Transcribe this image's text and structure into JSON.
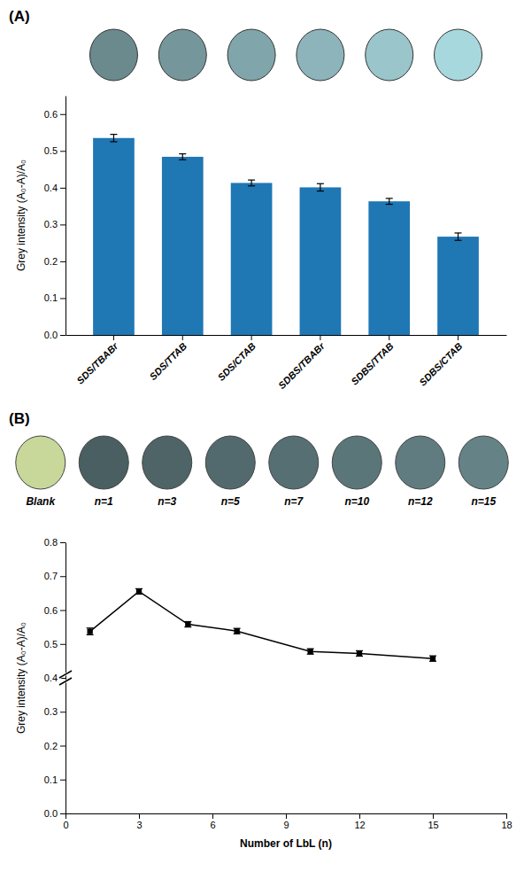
{
  "chart_data": [
    {
      "type": "bar",
      "title": "(A)",
      "categories": [
        "SDS/TBABr",
        "SDS/TTAB",
        "SDS/CTAB",
        "SDBS/TBABr",
        "SDBS/TTAB",
        "SDBS/CTAB"
      ],
      "values": [
        0.535,
        0.484,
        0.413,
        0.401,
        0.363,
        0.267
      ],
      "errors": [
        0.01,
        0.008,
        0.008,
        0.01,
        0.008,
        0.01
      ],
      "ylabel": "Grey intensity (A₀-A)/A₀",
      "ylim": [
        0.0,
        0.65
      ],
      "yticks": [
        {
          "value": 0.0,
          "label": "0.0"
        },
        0.1,
        0.2,
        0.3,
        0.4,
        0.5,
        0.6
      ]
    },
    {
      "type": "line",
      "title": "(B)",
      "annotations": [
        "Blank",
        "n=1",
        "n=3",
        "n=5",
        "n=7",
        "n=10",
        "n=12",
        "n=15"
      ],
      "x": [
        1,
        3,
        5,
        7,
        10,
        12,
        15
      ],
      "values": [
        0.537,
        0.655,
        0.558,
        0.538,
        0.478,
        0.472,
        0.457
      ],
      "errors": [
        0.01,
        0.008,
        0.008,
        0.008,
        0.008,
        0.008,
        0.008
      ],
      "xlabel": "Number of LbL (n)",
      "ylabel": "Grey intensity (A₀-A)/A₀",
      "xlim": [
        0,
        18
      ],
      "ylim": [
        0.0,
        0.8
      ],
      "xticks": [
        0,
        3,
        6,
        9,
        12,
        15,
        18
      ],
      "yticks": [
        {
          "value": 0.0,
          "label": "0.0"
        },
        0.1,
        0.2,
        0.3,
        0.4,
        0.5,
        0.6,
        0.7,
        0.8
      ],
      "color": "black",
      "marker": "square"
    }
  ]
}
